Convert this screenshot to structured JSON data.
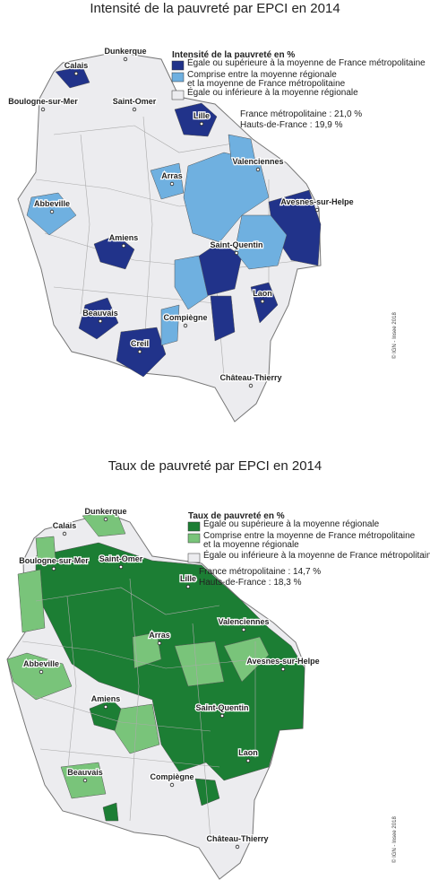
{
  "maps": [
    {
      "title": "Intensité de la pauvreté par EPCI en 2014",
      "legend": {
        "title": "Intensité de la pauvreté en %",
        "items": [
          {
            "lines": [
              "Égale ou supérieure à la moyenne de France métropolitaine"
            ]
          },
          {
            "lines": [
              "Comprise entre la moyenne régionale",
              "et la moyenne de France métropolitaine"
            ]
          },
          {
            "lines": [
              "Égale ou inférieure à la moyenne régionale"
            ]
          }
        ]
      },
      "reference": [
        "France métropolitaine : 21,0 %",
        "Hauts-de-France : 19,9 %"
      ],
      "cities": [
        "Dunkerque",
        "Calais",
        "Boulogne-sur-Mer",
        "Saint-Omer",
        "Lille",
        "Valenciennes",
        "Arras",
        "Abbeville",
        "Avesnes-sur-Helpe",
        "Amiens",
        "Saint-Quentin",
        "Laon",
        "Beauvais",
        "Compiègne",
        "Creil",
        "Château-Thierry"
      ],
      "credit": "© IGN - Insee 2018"
    },
    {
      "title": "Taux de pauvreté par EPCI en 2014",
      "legend": {
        "title": "Taux de pauvreté en %",
        "items": [
          {
            "lines": [
              "Égale ou supérieure à la moyenne régionale"
            ]
          },
          {
            "lines": [
              "Comprise entre la moyenne de France métropolitaine",
              "et la moyenne régionale"
            ]
          },
          {
            "lines": [
              "Égale ou inférieure à la moyenne de France métropolitaine"
            ]
          }
        ]
      },
      "reference": [
        "France métropolitaine : 14,7 %",
        "Hauts-de-France : 18,3 %"
      ],
      "cities": [
        "Dunkerque",
        "Calais",
        "Boulogne-sur-Mer",
        "Saint-Omer",
        "Lille",
        "Valenciennes",
        "Arras",
        "Abbeville",
        "Avesnes-sur-Helpe",
        "Amiens",
        "Saint-Quentin",
        "Laon",
        "Beauvais",
        "Compiègne",
        "Château-Thierry"
      ],
      "credit": "© IGN - Insee 2018"
    }
  ]
}
